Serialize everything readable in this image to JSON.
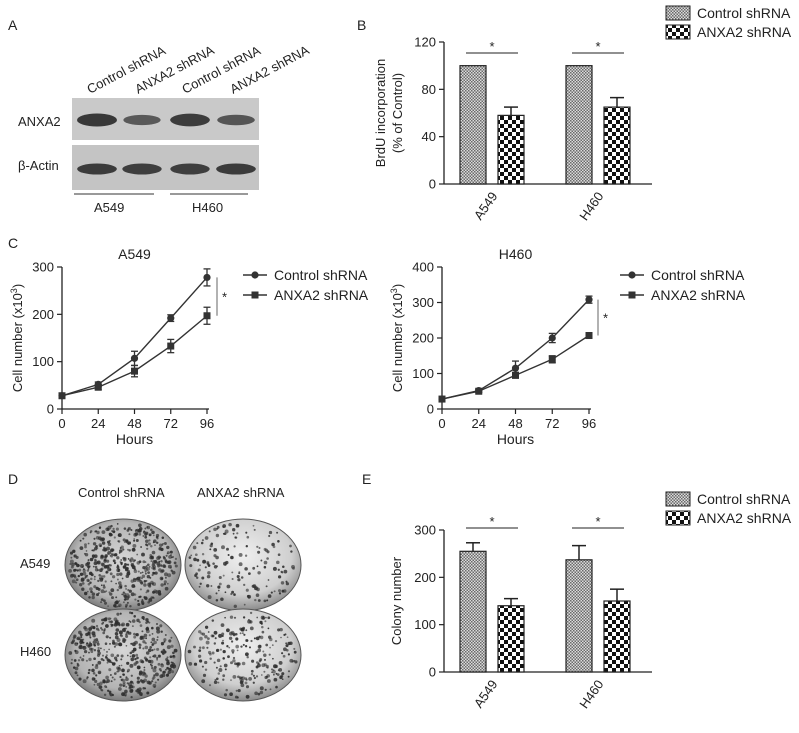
{
  "panel_letters": [
    "A",
    "B",
    "C",
    "D",
    "E"
  ],
  "western_blot": {
    "lane_labels": [
      "Control shRNA",
      "ANXA2 shRNA",
      "Control shRNA",
      "ANXA2 shRNA"
    ],
    "row_labels": [
      "ANXA2",
      "β-Actin"
    ],
    "group_labels": [
      "A549",
      "H460"
    ],
    "band_intensity": [
      [
        1.0,
        0.55,
        0.95,
        0.6
      ],
      [
        0.95,
        0.9,
        0.9,
        0.95
      ]
    ]
  },
  "colony_images": {
    "column_labels": [
      "Control shRNA",
      "ANXA2 shRNA"
    ],
    "row_labels": [
      "A549",
      "H460"
    ],
    "dot_density": [
      [
        0.95,
        0.3
      ],
      [
        0.85,
        0.45
      ]
    ]
  },
  "chart_data": [
    {
      "panel": "B",
      "type": "bar",
      "categories": [
        "A549",
        "H460"
      ],
      "series": [
        {
          "name": "Control shRNA",
          "values": [
            100,
            100
          ],
          "errors": [
            0,
            0
          ]
        },
        {
          "name": "ANXA2 shRNA",
          "values": [
            58,
            65
          ],
          "errors": [
            7,
            8
          ]
        }
      ],
      "ylabel_line1": "BrdU incorporation",
      "ylabel_line2": "(% of Control)",
      "ylim": [
        0,
        120
      ],
      "yticks": [
        0,
        40,
        80,
        120
      ],
      "significance": "*",
      "legend": "top-right"
    },
    {
      "panel": "C-left",
      "type": "line",
      "title": "A549",
      "x": [
        0,
        24,
        48,
        72,
        96
      ],
      "series": [
        {
          "name": "Control shRNA",
          "marker": "circle",
          "values": [
            28,
            52,
            107,
            192,
            278
          ],
          "errors": [
            3,
            5,
            15,
            7,
            18
          ]
        },
        {
          "name": "ANXA2 shRNA",
          "marker": "square",
          "values": [
            28,
            46,
            80,
            133,
            197
          ],
          "errors": [
            3,
            5,
            12,
            14,
            18
          ]
        }
      ],
      "xlabel": "Hours",
      "ylabel": "Cell number (x10",
      "ylabel_sup": "3",
      "ylabel_end": ")",
      "ylim": [
        0,
        300
      ],
      "yticks": [
        0,
        100,
        200,
        300
      ],
      "xticks": [
        0,
        24,
        48,
        72,
        96
      ],
      "significance": "*",
      "legend": "top-right"
    },
    {
      "panel": "C-right",
      "type": "line",
      "title": "H460",
      "x": [
        0,
        24,
        48,
        72,
        96
      ],
      "series": [
        {
          "name": "Control shRNA",
          "marker": "circle",
          "values": [
            28,
            52,
            115,
            200,
            308
          ],
          "errors": [
            3,
            4,
            20,
            13,
            10
          ]
        },
        {
          "name": "ANXA2 shRNA",
          "marker": "square",
          "values": [
            28,
            50,
            95,
            140,
            207
          ],
          "errors": [
            3,
            4,
            8,
            10,
            8
          ]
        }
      ],
      "xlabel": "Hours",
      "ylabel": "Cell number (x10",
      "ylabel_sup": "3",
      "ylabel_end": ")",
      "ylim": [
        0,
        400
      ],
      "yticks": [
        0,
        100,
        200,
        300,
        400
      ],
      "xticks": [
        0,
        24,
        48,
        72,
        96
      ],
      "significance": "*",
      "legend": "top-right"
    },
    {
      "panel": "E",
      "type": "bar",
      "categories": [
        "A549",
        "H460"
      ],
      "series": [
        {
          "name": "Control shRNA",
          "values": [
            255,
            237
          ],
          "errors": [
            18,
            30
          ]
        },
        {
          "name": "ANXA2 shRNA",
          "values": [
            140,
            150
          ],
          "errors": [
            15,
            25
          ]
        }
      ],
      "ylabel": "Colony number",
      "ylim": [
        0,
        300
      ],
      "yticks": [
        0,
        100,
        200,
        300
      ],
      "significance": "*",
      "legend": "top-right"
    }
  ]
}
